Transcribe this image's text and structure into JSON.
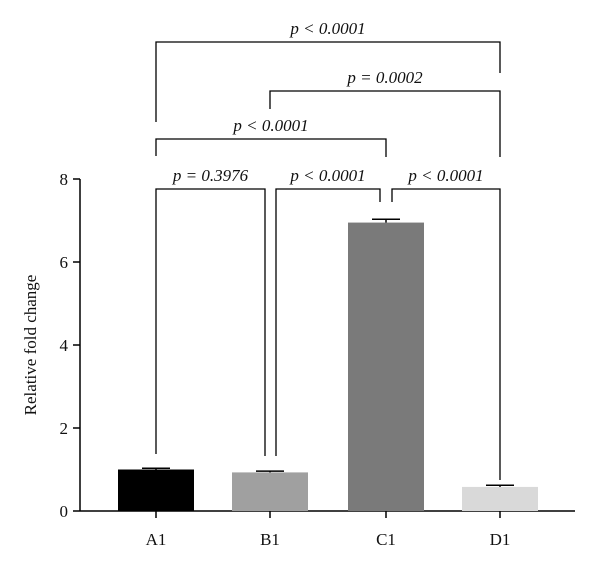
{
  "chart_data": {
    "type": "bar",
    "title": "",
    "xlabel": "",
    "ylabel": "Relative fold change",
    "ylim": [
      0,
      8
    ],
    "yticks": [
      "0",
      "2",
      "4",
      "6",
      "8"
    ],
    "grid": false,
    "categories": [
      "A1",
      "B1",
      "C1",
      "D1"
    ],
    "values": [
      1.0,
      0.93,
      6.95,
      0.58
    ],
    "errors": [
      0.03,
      0.03,
      0.08,
      0.04
    ],
    "colors": [
      "#000000",
      "#a0a0a0",
      "#7a7a7a",
      "#d9d9d9"
    ],
    "comparisons": [
      {
        "a": "A1",
        "b": "D1",
        "label": "p < 0.0001"
      },
      {
        "a": "B1",
        "b": "D1",
        "label": "p = 0.0002"
      },
      {
        "a": "A1",
        "b": "C1",
        "label": "p < 0.0001"
      },
      {
        "a": "A1",
        "b": "B1",
        "label": "p = 0.3976"
      },
      {
        "a": "B1",
        "b": "C1",
        "label": "p < 0.0001"
      },
      {
        "a": "C1",
        "b": "D1",
        "label": "p < 0.0001"
      }
    ]
  }
}
